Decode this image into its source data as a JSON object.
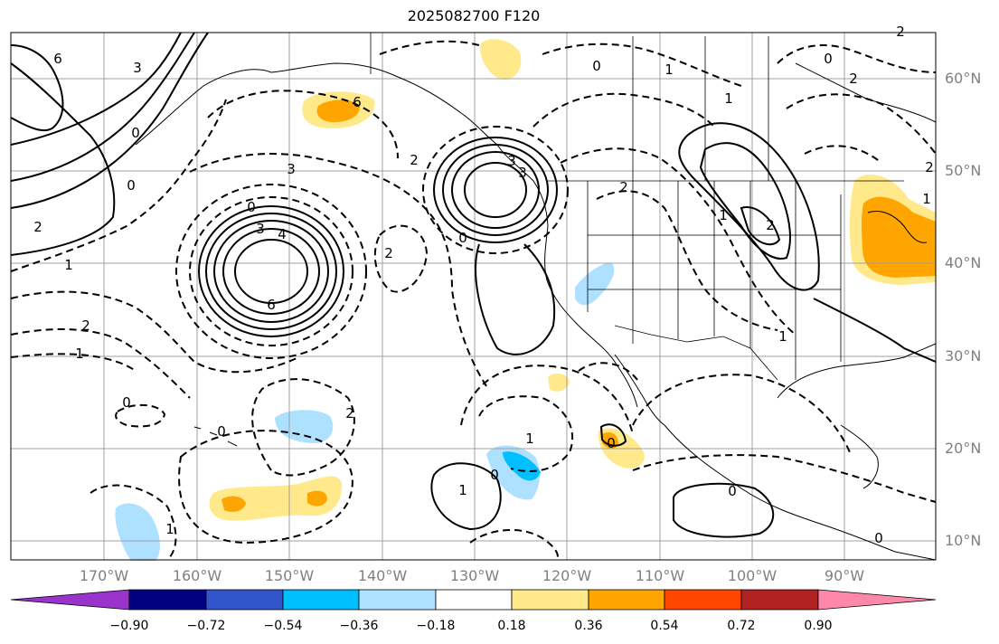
{
  "title": "2025082700 F120",
  "lat_labels": [
    "60°N",
    "50°N",
    "40°N",
    "30°N",
    "20°N",
    "10°N"
  ],
  "lon_labels": [
    "170°W",
    "160°W",
    "150°W",
    "140°W",
    "130°W",
    "120°W",
    "110°W",
    "100°W",
    "90°W"
  ],
  "colorbar": {
    "ticks": [
      "−0.90",
      "−0.72",
      "−0.54",
      "−0.36",
      "−0.18",
      "0.18",
      "0.36",
      "0.54",
      "0.72",
      "0.90"
    ],
    "colors": [
      "#9933cc",
      "#000080",
      "#3355cc",
      "#00bfff",
      "#aee0ff",
      "#ffffff",
      "#ffe98a",
      "#ffa500",
      "#ff4500",
      "#b22222",
      "#ff88aa"
    ]
  },
  "contour_labels": [
    "6",
    "3",
    "3",
    "4",
    "6",
    "0",
    "3",
    "2",
    "0",
    "2",
    "1",
    "2",
    "1",
    "1",
    "0",
    "0",
    "3",
    "2",
    "0",
    "1",
    "1",
    "0",
    "2",
    "1",
    "2",
    "1",
    "6",
    "0",
    "0",
    "2",
    "3",
    "0",
    "1",
    "0",
    "1",
    "2",
    "2",
    "1",
    "0",
    "0",
    "2"
  ],
  "colors": {
    "land_fill": "#ffffff",
    "pos_anomaly_light": "#ffe98a",
    "pos_anomaly_strong": "#ffa500",
    "neg_anomaly_light": "#aee0ff",
    "neg_anomaly_strong": "#00bfff",
    "grid": "#a0a0a0",
    "tick_label": "#808080"
  }
}
